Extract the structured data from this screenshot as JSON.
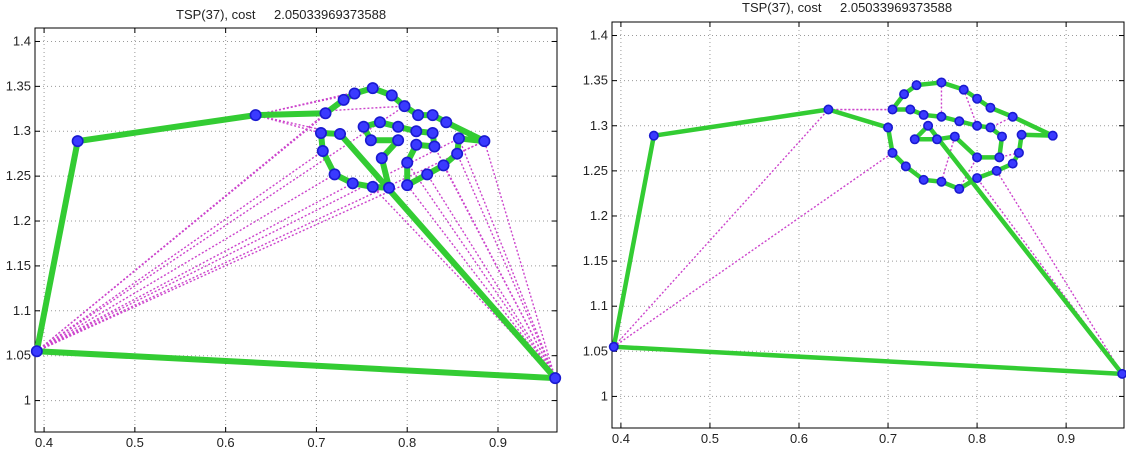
{
  "chart_data": [
    {
      "type": "scatter",
      "title_name": "TSP(37), cost",
      "title_value": "2.05033969373588",
      "xlim": [
        0.39,
        0.965
      ],
      "ylim": [
        0.965,
        1.415
      ],
      "x_ticks": [
        0.4,
        0.5,
        0.6,
        0.7,
        0.8,
        0.9
      ],
      "x_tick_labels": [
        "0.4",
        "0.5",
        "0.6",
        "0.7",
        "0.8",
        "0.9"
      ],
      "y_ticks": [
        1,
        1.05,
        1.1,
        1.15,
        1.2,
        1.25,
        1.3,
        1.35,
        1.4
      ],
      "y_tick_labels": [
        "1",
        "1.05",
        "1.1",
        "1.15",
        "1.2",
        "1.25",
        "1.3",
        "1.35",
        "1.4"
      ],
      "grid": true,
      "colors": {
        "nodes": "#1a1ad0",
        "node_fill": "#3a3aff",
        "tour": "#33cc33",
        "candidate_edges": "#cc44cc"
      },
      "nodes": [
        [
          0.392,
          1.055
        ],
        [
          0.437,
          1.289
        ],
        [
          0.633,
          1.318
        ],
        [
          0.963,
          1.025
        ],
        [
          0.885,
          1.289
        ],
        [
          0.71,
          1.32
        ],
        [
          0.73,
          1.335
        ],
        [
          0.742,
          1.342
        ],
        [
          0.762,
          1.348
        ],
        [
          0.783,
          1.34
        ],
        [
          0.797,
          1.328
        ],
        [
          0.812,
          1.318
        ],
        [
          0.828,
          1.318
        ],
        [
          0.843,
          1.31
        ],
        [
          0.857,
          1.292
        ],
        [
          0.855,
          1.275
        ],
        [
          0.84,
          1.262
        ],
        [
          0.822,
          1.252
        ],
        [
          0.8,
          1.24
        ],
        [
          0.78,
          1.237
        ],
        [
          0.762,
          1.238
        ],
        [
          0.74,
          1.242
        ],
        [
          0.72,
          1.252
        ],
        [
          0.707,
          1.278
        ],
        [
          0.705,
          1.298
        ],
        [
          0.752,
          1.305
        ],
        [
          0.77,
          1.31
        ],
        [
          0.79,
          1.305
        ],
        [
          0.81,
          1.3
        ],
        [
          0.828,
          1.298
        ],
        [
          0.76,
          1.29
        ],
        [
          0.79,
          1.29
        ],
        [
          0.81,
          1.285
        ],
        [
          0.83,
          1.283
        ],
        [
          0.772,
          1.27
        ],
        [
          0.8,
          1.265
        ],
        [
          0.726,
          1.297
        ]
      ],
      "tour": [
        0,
        1,
        2,
        5,
        6,
        7,
        8,
        9,
        10,
        11,
        12,
        13,
        4,
        14,
        15,
        16,
        17,
        18,
        35,
        32,
        33,
        29,
        28,
        27,
        26,
        25,
        30,
        31,
        34,
        19,
        20,
        21,
        22,
        23,
        24,
        36,
        3,
        0
      ],
      "candidate_edges": [
        [
          0,
          5
        ],
        [
          0,
          6
        ],
        [
          0,
          10
        ],
        [
          0,
          14
        ],
        [
          0,
          17
        ],
        [
          0,
          22
        ],
        [
          0,
          3
        ],
        [
          0,
          4
        ],
        [
          0,
          21
        ],
        [
          0,
          23
        ],
        [
          2,
          7
        ],
        [
          2,
          8
        ],
        [
          2,
          10
        ],
        [
          2,
          24
        ],
        [
          2,
          36
        ],
        [
          3,
          15
        ],
        [
          3,
          16
        ],
        [
          3,
          17
        ],
        [
          3,
          4
        ],
        [
          3,
          14
        ],
        [
          3,
          33
        ],
        [
          3,
          35
        ],
        [
          3,
          18
        ],
        [
          3,
          20
        ],
        [
          4,
          12
        ],
        [
          4,
          15
        ],
        [
          4,
          13
        ]
      ]
    },
    {
      "type": "scatter",
      "title_name": "TSP(37), cost",
      "title_value": "2.05033969373588",
      "xlim": [
        0.39,
        0.965
      ],
      "ylim": [
        0.965,
        1.415
      ],
      "x_ticks": [
        0.4,
        0.5,
        0.6,
        0.7,
        0.8,
        0.9
      ],
      "x_tick_labels": [
        "0.4",
        "0.5",
        "0.6",
        "0.7",
        "0.8",
        "0.9"
      ],
      "y_ticks": [
        1,
        1.05,
        1.1,
        1.15,
        1.2,
        1.25,
        1.3,
        1.35,
        1.4
      ],
      "y_tick_labels": [
        "1",
        "1.05",
        "1.1",
        "1.15",
        "1.2",
        "1.25",
        "1.3",
        "1.35",
        "1.4"
      ],
      "grid": true,
      "colors": {
        "nodes": "#1a1ad0",
        "node_fill": "#3a3aff",
        "tour": "#33cc33",
        "candidate_edges": "#cc44cc"
      },
      "nodes": [
        [
          0.392,
          1.055
        ],
        [
          0.437,
          1.289
        ],
        [
          0.633,
          1.318
        ],
        [
          0.963,
          1.025
        ],
        [
          0.885,
          1.289
        ],
        [
          0.705,
          1.318
        ],
        [
          0.718,
          1.335
        ],
        [
          0.732,
          1.345
        ],
        [
          0.76,
          1.348
        ],
        [
          0.785,
          1.34
        ],
        [
          0.8,
          1.33
        ],
        [
          0.815,
          1.32
        ],
        [
          0.84,
          1.31
        ],
        [
          0.85,
          1.29
        ],
        [
          0.847,
          1.27
        ],
        [
          0.84,
          1.258
        ],
        [
          0.822,
          1.25
        ],
        [
          0.8,
          1.242
        ],
        [
          0.78,
          1.23
        ],
        [
          0.76,
          1.238
        ],
        [
          0.74,
          1.24
        ],
        [
          0.72,
          1.255
        ],
        [
          0.705,
          1.27
        ],
        [
          0.7,
          1.298
        ],
        [
          0.725,
          1.318
        ],
        [
          0.74,
          1.312
        ],
        [
          0.76,
          1.31
        ],
        [
          0.78,
          1.305
        ],
        [
          0.8,
          1.3
        ],
        [
          0.815,
          1.298
        ],
        [
          0.828,
          1.288
        ],
        [
          0.825,
          1.265
        ],
        [
          0.8,
          1.265
        ],
        [
          0.775,
          1.288
        ],
        [
          0.755,
          1.285
        ],
        [
          0.73,
          1.285
        ],
        [
          0.745,
          1.3
        ]
      ],
      "tour": [
        0,
        1,
        2,
        23,
        22,
        21,
        20,
        19,
        18,
        17,
        16,
        15,
        14,
        13,
        4,
        12,
        11,
        10,
        9,
        8,
        7,
        6,
        5,
        24,
        25,
        26,
        27,
        28,
        29,
        30,
        31,
        32,
        33,
        34,
        35,
        36,
        3,
        0
      ],
      "candidate_edges": [
        [
          0,
          2
        ],
        [
          0,
          1
        ],
        [
          0,
          22
        ],
        [
          2,
          5
        ],
        [
          2,
          24
        ],
        [
          3,
          16
        ],
        [
          3,
          17
        ],
        [
          8,
          26
        ],
        [
          9,
          28
        ],
        [
          12,
          29
        ],
        [
          14,
          31
        ],
        [
          18,
          32
        ],
        [
          19,
          33
        ]
      ]
    }
  ]
}
